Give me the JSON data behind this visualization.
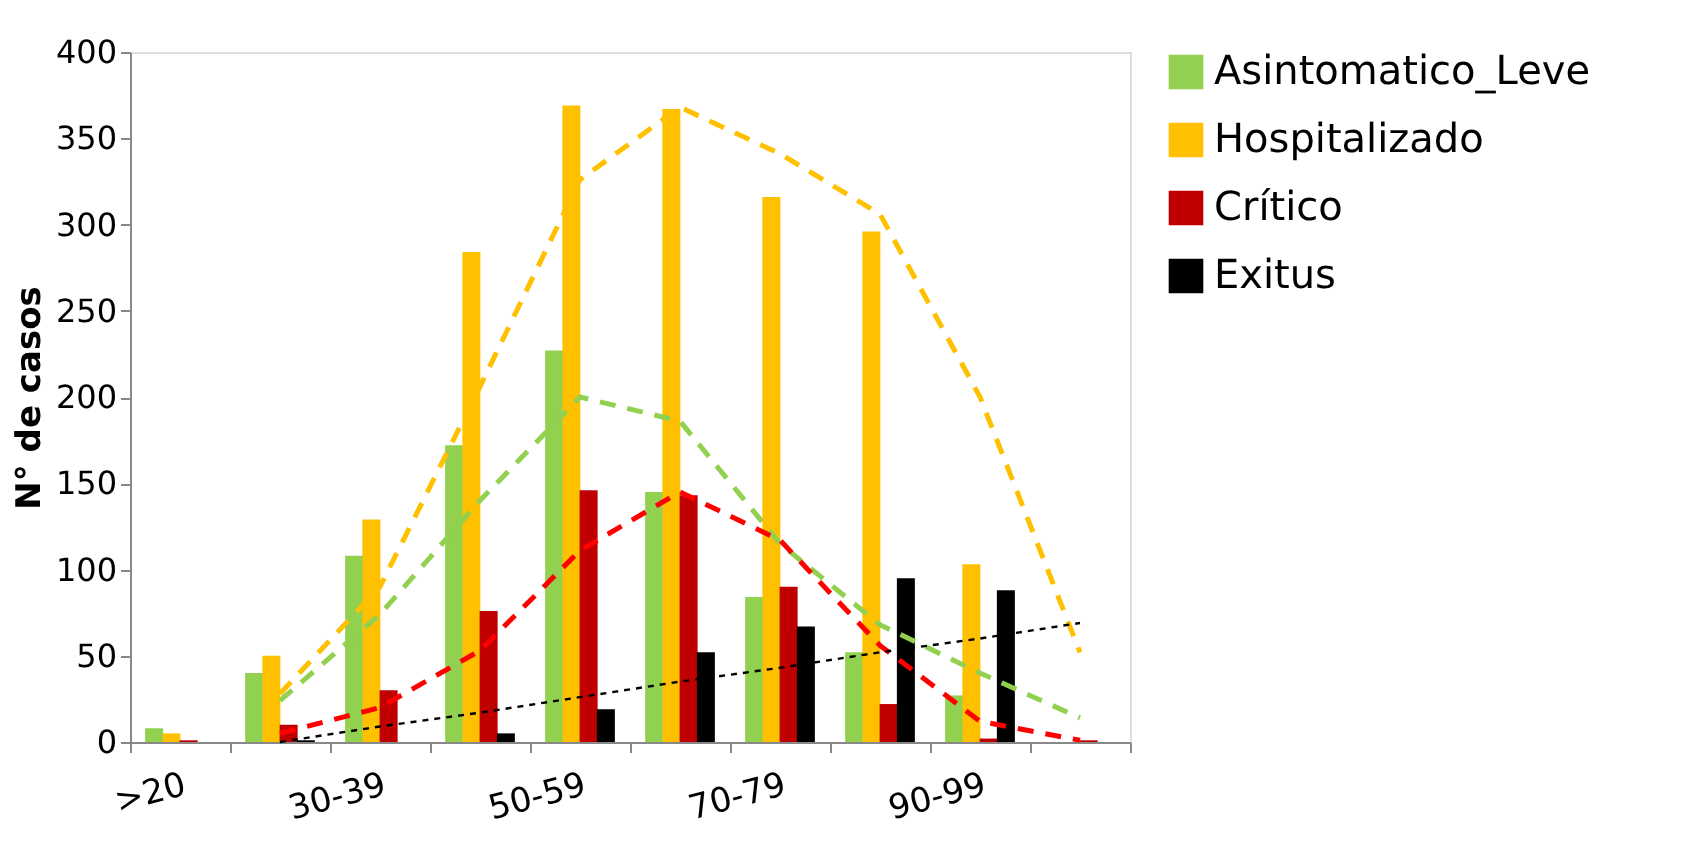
{
  "chart_data": {
    "type": "bar",
    "ylabel": "N° de casos",
    "categories": [
      ">20",
      null,
      "30-39",
      null,
      "50-59",
      null,
      "70-79",
      null,
      "90-99",
      null
    ],
    "series": [
      {
        "name": "Asintomatico_Leve",
        "color": "#92d050",
        "values": [
          8,
          40,
          108,
          172,
          227,
          145,
          84,
          52,
          27,
          0
        ]
      },
      {
        "name": "Hospitalizado",
        "color": "#ffc000",
        "values": [
          5,
          50,
          129,
          284,
          369,
          367,
          316,
          296,
          103,
          0
        ]
      },
      {
        "name": "Crítico",
        "color": "#c00000",
        "values": [
          1,
          10,
          30,
          76,
          146,
          143,
          90,
          22,
          2,
          1
        ]
      },
      {
        "name": "Exitus",
        "color": "#000000",
        "values": [
          0,
          1,
          0,
          5,
          19,
          52,
          67,
          95,
          88,
          0
        ]
      },
      {
        "type": "line",
        "line_style": "dashed",
        "color": "#92d050",
        "values": [
          null,
          24,
          74,
          140,
          200,
          186,
          115,
          68,
          40,
          14
        ]
      },
      {
        "type": "line",
        "line_style": "dashed",
        "color": "#ffc000",
        "values": [
          null,
          28,
          90,
          206,
          326,
          368,
          341,
          306,
          200,
          52
        ]
      },
      {
        "type": "line",
        "line_style": "dashed",
        "color": "#ff0000",
        "values": [
          null,
          5,
          20,
          53,
          111,
          145,
          117,
          56,
          12,
          1
        ]
      },
      {
        "type": "line",
        "line_style": "dotted",
        "color": "#000000",
        "values": [
          null,
          0,
          9,
          17,
          26,
          35,
          43,
          52,
          60,
          69
        ]
      }
    ],
    "ylim": [
      0,
      400
    ],
    "yticks": [
      0,
      50,
      100,
      150,
      200,
      250,
      300,
      350,
      400
    ],
    "grid": false,
    "legend": "right"
  }
}
